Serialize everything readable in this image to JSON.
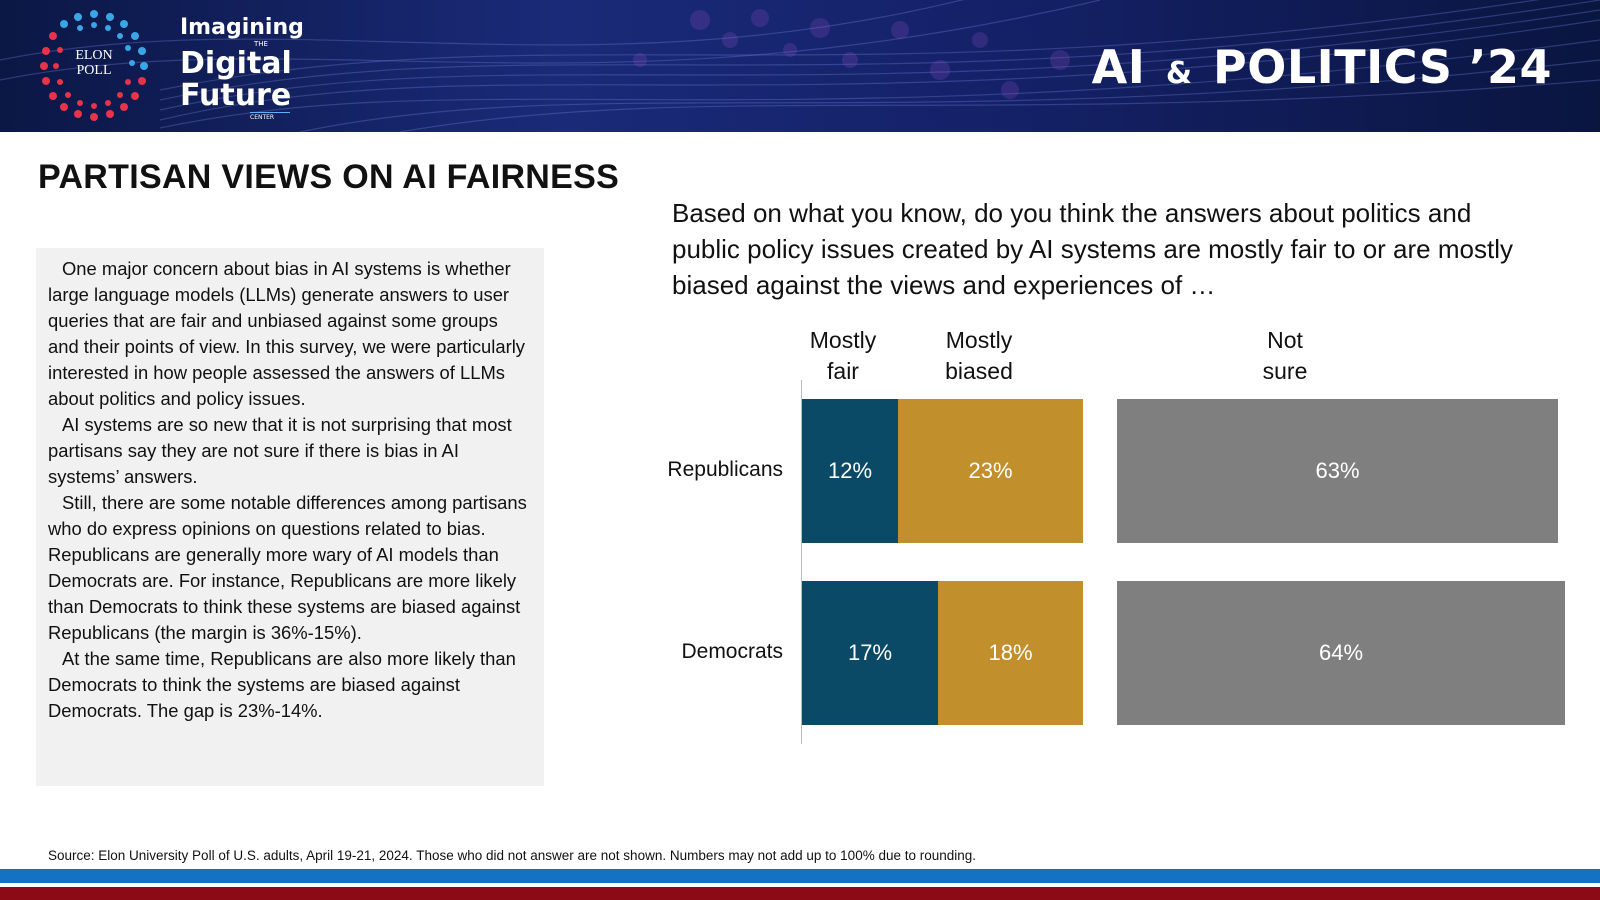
{
  "header": {
    "logo_line1": "ELON",
    "logo_line2": "POLL",
    "brand_line1": "Imagining",
    "brand_the": "THE",
    "brand_line2": "Digital",
    "brand_line3": "Future",
    "brand_center": "CENTER",
    "page_brand_part1": "AI",
    "page_brand_amp": "&",
    "page_brand_part2": "POLITICS ’24"
  },
  "title": "PARTISAN VIEWS ON AI FAIRNESS",
  "explanation": [
    "One major concern about bias in AI systems is whether large language models (LLMs) generate answers to user queries that are fair and unbiased against some groups and their points of view. In this survey, we were particularly interested in how people assessed the answers of LLMs about politics and policy issues.",
    "AI systems are so new that it is not surprising that most partisans say they are not sure if there is bias in AI systems’ answers.",
    "Still, there are some notable differences among partisans who do express opinions on questions related to bias. Republicans are generally more wary of AI models than Democrats are. For instance, Republicans are more likely than Democrats to think these systems are biased against Republicans (the margin is 36%-15%).",
    "At the same time, Republicans are also more likely than Democrats to think the systems are biased against Democrats. The gap is 23%-14%."
  ],
  "question": "Based on what you know, do you think the answers about politics and public policy issues created by AI systems are mostly fair to or are mostly biased against the views and experiences of …",
  "chart_data": {
    "type": "bar",
    "orientation": "horizontal-stacked",
    "categories": [
      "Republicans",
      "Democrats"
    ],
    "series": [
      {
        "name": "Mostly fair",
        "header_line1": "Mostly",
        "header_line2": "fair",
        "color": "#0b4a66",
        "values": [
          12,
          17
        ],
        "labels": [
          "12%",
          "17%"
        ]
      },
      {
        "name": "Mostly biased",
        "header_line1": "Mostly",
        "header_line2": "biased",
        "color": "#c18f2c",
        "values": [
          23,
          18
        ],
        "labels": [
          "23%",
          "18%"
        ]
      },
      {
        "name": "Not sure",
        "header_line1": "Not",
        "header_line2": "sure",
        "color": "#7f7f7f",
        "values": [
          63,
          64
        ],
        "labels": [
          "63%",
          "64%"
        ]
      }
    ],
    "xlim": [
      0,
      100
    ],
    "legend": "column headers above bars"
  },
  "source": "Source: Elon University Poll of U.S. adults, April 19-21, 2024. Those who did not answer are not shown. Numbers may not add up to 100% due to rounding.",
  "colors": {
    "banner": "#15226a",
    "stripe_blue": "#1472c4",
    "stripe_red": "#8c0a16",
    "panel": "#f1f1f1"
  }
}
